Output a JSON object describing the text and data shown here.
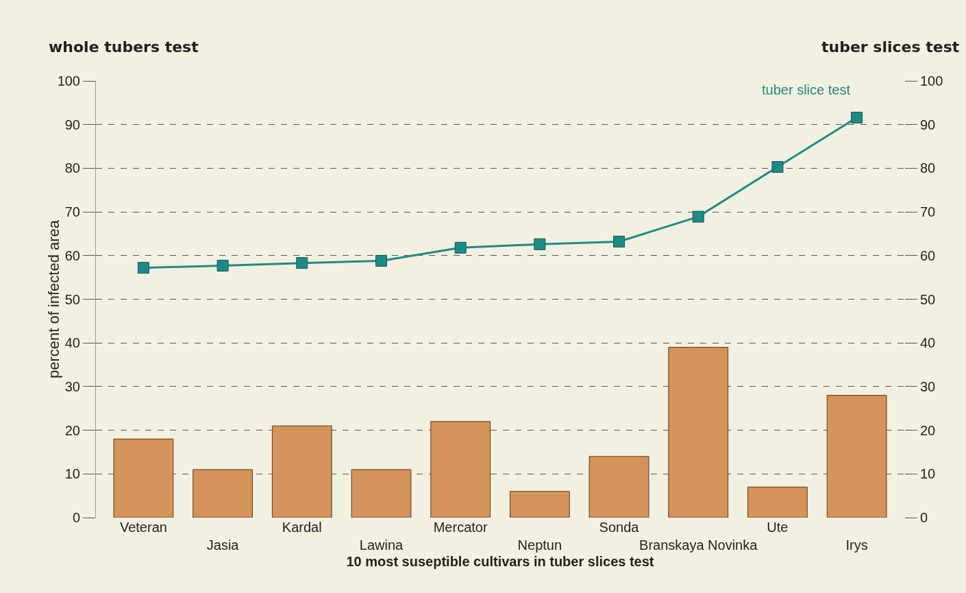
{
  "chart_data": {
    "type": "bar",
    "ylabel": "percent of infected area",
    "xlabel": "10 most suseptible cultivars in tuber slices test",
    "annotations": [
      "whole tubers test",
      "tuber slices test"
    ],
    "categories": [
      "Veteran",
      "Jasia",
      "Kardal",
      "Lawina",
      "Mercator",
      "Neptun",
      "Sonda",
      "Branskaya Novinka",
      "Ute",
      "Irys"
    ],
    "series": [
      {
        "color": "#d4935a",
        "values": [
          18,
          11,
          21,
          11,
          22,
          6,
          14,
          39,
          7,
          28
        ]
      },
      {
        "type": "line",
        "name": "tuber slice test",
        "axis": "y2",
        "color": "#1e8a85",
        "marker": "square",
        "line_style": "solid",
        "values": [
          57.2,
          57.7,
          58.3,
          58.8,
          61.8,
          62.6,
          63.2,
          68.9,
          80.3,
          91.6
        ]
      }
    ],
    "ylim": [
      0,
      100
    ],
    "yticks": [
      0,
      10,
      20,
      30,
      40,
      50,
      60,
      70,
      80,
      90,
      100
    ],
    "y2lim": [
      0,
      100
    ],
    "y2ticks": [
      0,
      10,
      20,
      30,
      40,
      50,
      60,
      70,
      80,
      90,
      100
    ],
    "grid": "y2"
  }
}
